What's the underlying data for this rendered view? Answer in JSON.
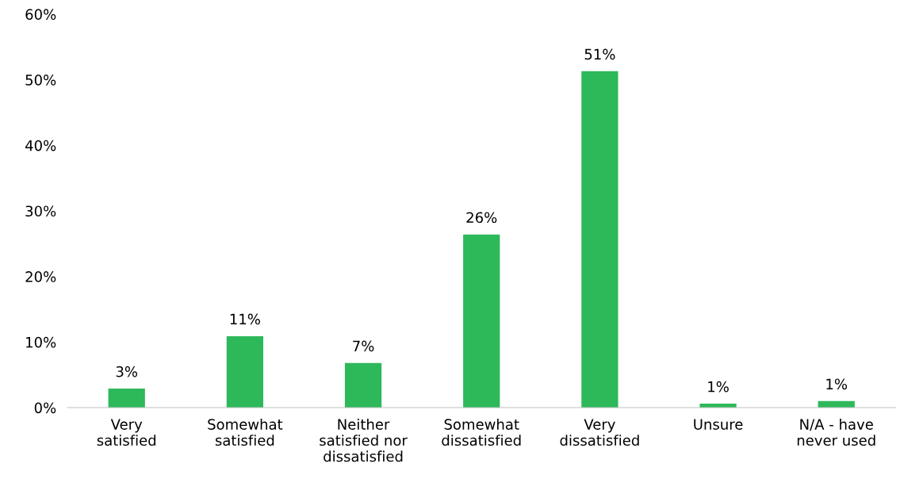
{
  "chart_data": {
    "type": "bar",
    "categories": [
      "Very satisfied",
      "Somewhat satisfied",
      "Neither satisfied nor dissatisfied",
      "Somewhat dissatisfied",
      "Very dissatisfied",
      "Unsure",
      "N/A - have never used"
    ],
    "values": [
      2.9,
      10.9,
      6.8,
      26.4,
      51.3,
      0.6,
      1.0
    ],
    "value_labels": [
      "3%",
      "11%",
      "7%",
      "26%",
      "51%",
      "1%",
      "1%"
    ],
    "color": "#2db85a",
    "ylim": [
      0,
      60
    ],
    "yticks": [
      {
        "value": 0,
        "label": "0%"
      },
      {
        "value": 10,
        "label": "10%"
      },
      {
        "value": 20,
        "label": "20%"
      },
      {
        "value": 30,
        "label": "30%"
      },
      {
        "value": 40,
        "label": "40%"
      },
      {
        "value": 50,
        "label": "50%"
      },
      {
        "value": 60,
        "label": "60%"
      }
    ],
    "grid": false,
    "legend": false
  }
}
